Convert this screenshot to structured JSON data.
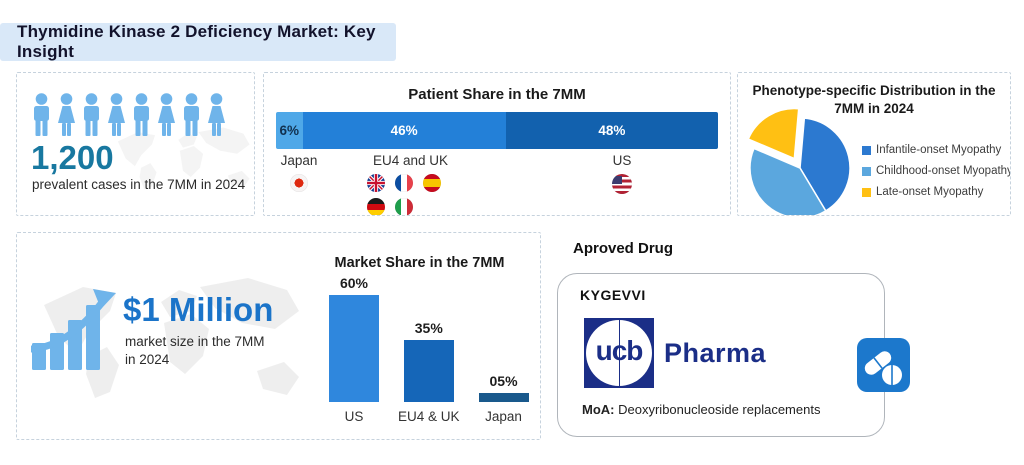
{
  "page": {
    "title": "Thymidine Kinase 2 Deficiency Market: Key Insight"
  },
  "colors": {
    "title_bar_bg": "#D9E8F8",
    "people_blue": "#6FB4EA",
    "teal_number": "#1878A0",
    "market_value_blue": "#1B74C9",
    "ucb_navy": "#1B2E87",
    "pill_icon_bg": "#1C78CC"
  },
  "prevalence": {
    "people_count": 8,
    "value": "1,200",
    "caption": "prevalent cases in the 7MM in 2024"
  },
  "patient_share": {
    "title": "Patient Share in the 7MM",
    "groups": [
      {
        "label": "Japan",
        "flags": [
          "japan"
        ]
      },
      {
        "label": "EU4 and UK",
        "flags": [
          "uk",
          "france",
          "spain",
          "germany",
          "italy"
        ]
      },
      {
        "label": "US",
        "flags": [
          "us"
        ]
      }
    ]
  },
  "phenotype": {
    "title_line1": "Phenotype-specific Distribution in the",
    "title_line2": "7MM in 2024"
  },
  "market_size": {
    "value": "$1 Million",
    "caption_line1": "market size in the 7MM",
    "caption_line2": "in 2024"
  },
  "market_share": {
    "title": "Market Share in the 7MM"
  },
  "approved_drug": {
    "heading": "Aproved Drug",
    "drug_name": "KYGEVVI",
    "company_logo_text": "ucb",
    "company_name": "Pharma",
    "moa_label": "MoA:",
    "moa_text": "Deoxyribonucleoside replacements"
  },
  "icons": {
    "person": "person-icon",
    "growth": "growth-chart-icon",
    "pills": "pills-icon",
    "map": "world-map-watermark",
    "flags": [
      "japan-flag-icon",
      "uk-flag-icon",
      "france-flag-icon",
      "spain-flag-icon",
      "germany-flag-icon",
      "italy-flag-icon",
      "us-flag-icon"
    ]
  },
  "chart_data": [
    {
      "type": "bar",
      "variant": "stacked-horizontal",
      "title": "Patient Share in the 7MM",
      "categories": [
        "Japan",
        "EU4 and UK",
        "US"
      ],
      "values": [
        6,
        46,
        48
      ],
      "value_labels": [
        "6%",
        "46%",
        "48%"
      ],
      "colors": [
        "#4FA8E8",
        "#2380D8",
        "#1261AE"
      ],
      "label_colors": [
        "#11314F",
        "#FFFFFF",
        "#FFFFFF"
      ],
      "xlim": [
        0,
        100
      ]
    },
    {
      "type": "pie",
      "title": "Phenotype-specific Distribution in the 7MM in 2024",
      "labels": [
        "Infantile-onset Myopathy",
        "Childhood-onset Myopathy",
        "Late-onset Myopathy"
      ],
      "values": [
        40,
        40,
        20
      ],
      "values_are_estimates": true,
      "colors": [
        "#2C79D0",
        "#5BA7DE",
        "#FFC013"
      ],
      "exploded_index": 2,
      "start_angle_deg": 5,
      "legend_position": "right"
    },
    {
      "type": "bar",
      "title": "Market Share in the 7MM",
      "categories": [
        "US",
        "EU4 & UK",
        "Japan"
      ],
      "values": [
        60,
        35,
        5
      ],
      "value_labels": [
        "60%",
        "35%",
        "05%"
      ],
      "colors": [
        "#2F87DD",
        "#1566B8",
        "#19598C"
      ],
      "ylim": [
        0,
        60
      ]
    }
  ]
}
